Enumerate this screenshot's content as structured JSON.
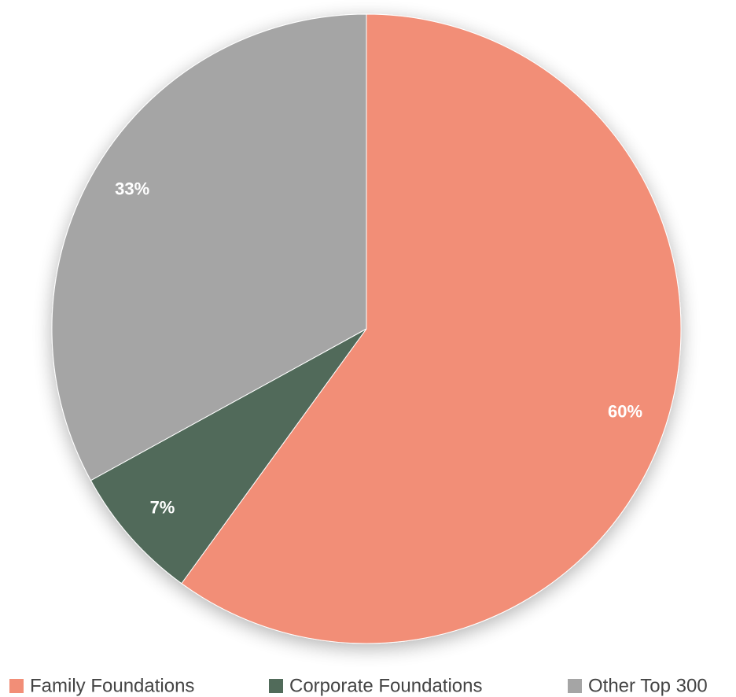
{
  "chart_data": {
    "type": "pie",
    "categories": [
      "Family Foundations",
      "Corporate Foundations",
      "Other Top 300"
    ],
    "values": [
      60,
      7,
      33
    ],
    "value_labels": [
      "60%",
      "7%",
      "33%"
    ],
    "colors": [
      "#f28e77",
      "#516b5a",
      "#a5a5a5"
    ],
    "legend": "bottom"
  }
}
